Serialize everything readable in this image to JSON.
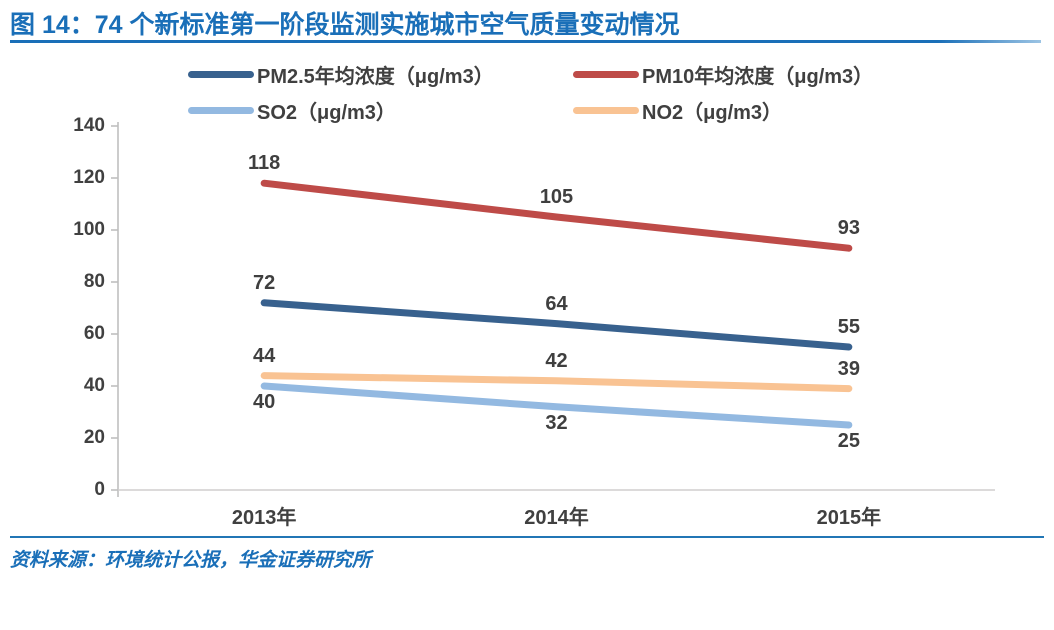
{
  "header": {
    "title": "图 14：74 个新标准第一阶段监测实施城市空气质量变动情况"
  },
  "footer": {
    "source": "资料来源：环境统计公报，华金证券研究所"
  },
  "colors": {
    "title_blue": "#1A6FB8",
    "rule_blue": "#2176B5",
    "axis_text": "#404040",
    "data_label_text": "#3F3F3F",
    "y_axis_line": "#BFBFBF",
    "x_axis_line": "#D0CECE",
    "pm25_blue": "#38618E",
    "pm10_red": "#BE4B48",
    "so2_light_blue": "#93B9E1",
    "no2_orange": "#F9C393"
  },
  "chart_data": {
    "type": "line",
    "title": "图 14：74 个新标准第一阶段监测实施城市空气质量变动情况",
    "categories": [
      "2013年",
      "2014年",
      "2015年"
    ],
    "series": [
      {
        "name": "PM2.5年均浓度（μg/m3）",
        "values": [
          72,
          64,
          55
        ],
        "color": "#38618E",
        "label_side": "above"
      },
      {
        "name": "PM10年均浓度（μg/m3）",
        "values": [
          118,
          105,
          93
        ],
        "color": "#BE4B48",
        "label_side": "above"
      },
      {
        "name": "SO2（μg/m3）",
        "values": [
          40,
          32,
          25
        ],
        "color": "#93B9E1",
        "label_side": "below"
      },
      {
        "name": "NO2（μg/m3）",
        "values": [
          44,
          42,
          39
        ],
        "color": "#F9C393",
        "label_side": "above"
      }
    ],
    "xlabel": "",
    "ylabel": "",
    "ylim": [
      0,
      140
    ],
    "yticks": [
      0,
      20,
      40,
      60,
      80,
      100,
      120,
      140
    ],
    "grid": false,
    "legend_position": "top",
    "data_labels": true,
    "source": "资料来源：环境统计公报，华金证券研究所"
  }
}
